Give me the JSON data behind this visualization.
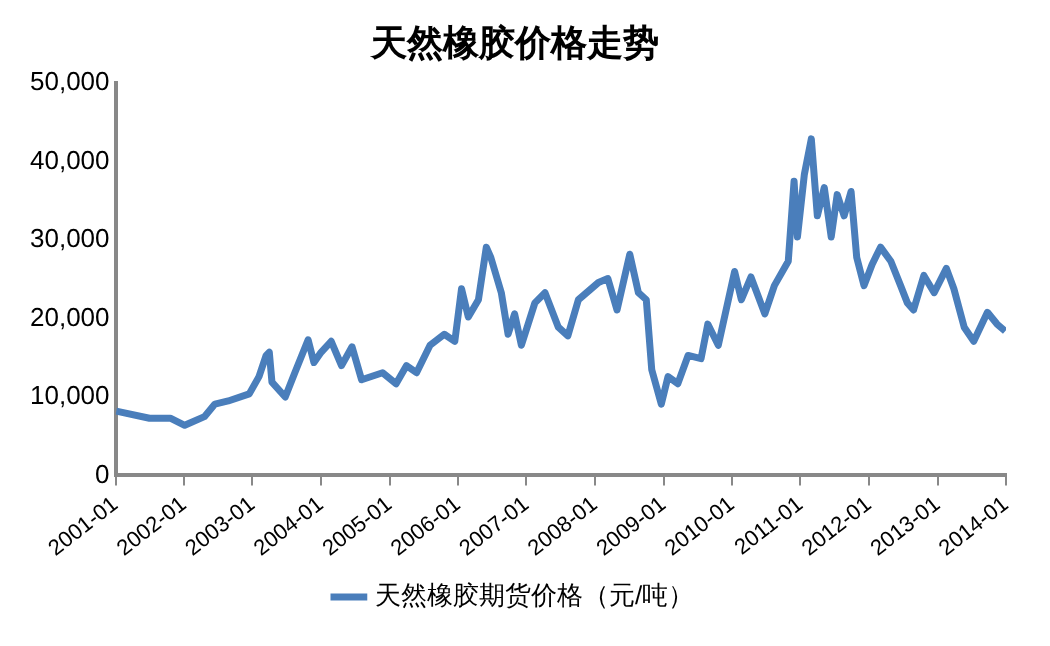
{
  "chart_data": {
    "type": "line",
    "title": "天然橡胶价格走势",
    "legend": "bottom",
    "xlim": [
      "2001-01",
      "2014-01"
    ],
    "xticks": [
      "2001-01",
      "2002-01",
      "2003-01",
      "2004-01",
      "2005-01",
      "2006-01",
      "2007-01",
      "2008-01",
      "2009-01",
      "2010-01",
      "2011-01",
      "2012-01",
      "2013-01",
      "2014-01"
    ],
    "ylim": [
      0,
      50000
    ],
    "yticks": [
      0,
      {
        "value": 10000,
        "label": "10,000"
      },
      {
        "value": 20000,
        "label": "20,000"
      },
      {
        "value": 30000,
        "label": "30,000"
      },
      {
        "value": 40000,
        "label": "40,000"
      },
      {
        "value": 50000,
        "label": "50,000"
      }
    ],
    "x": [
      "2001-01-05",
      "2001-07-01",
      "2001-10-20",
      "2002-01-05",
      "2002-04-20",
      "2002-06-15",
      "2002-08-25",
      "2002-12-15",
      "2003-02-05",
      "2003-03-15",
      "2003-04-01",
      "2003-04-15",
      "2003-06-25",
      "2003-08-15",
      "2003-10-25",
      "2003-11-25",
      "2004-01-02",
      "2004-02-25",
      "2004-04-20",
      "2004-06-15",
      "2004-08-05",
      "2004-11-25",
      "2005-02-05",
      "2005-04-01",
      "2005-05-25",
      "2005-08-05",
      "2005-10-20",
      "2005-12-15",
      "2006-01-20",
      "2006-02-25",
      "2006-04-20",
      "2006-06-01",
      "2006-06-25",
      "2006-08-20",
      "2006-09-25",
      "2006-10-30",
      "2006-12-05",
      "2007-02-15",
      "2007-04-10",
      "2007-06-20",
      "2007-08-10",
      "2007-10-05",
      "2008-01-20",
      "2008-03-10",
      "2008-04-28",
      "2008-07-05",
      "2008-08-20",
      "2008-10-01",
      "2008-10-30",
      "2008-12-20",
      "2009-01-25",
      "2009-03-18",
      "2009-05-12",
      "2009-07-20",
      "2009-08-25",
      "2009-10-20",
      "2010-01-15",
      "2010-02-20",
      "2010-04-12",
      "2010-06-25",
      "2010-08-15",
      "2010-10-28",
      "2010-11-28",
      "2010-12-16",
      "2011-01-22",
      "2011-02-28",
      "2011-04-01",
      "2011-05-08",
      "2011-06-14",
      "2011-07-16",
      "2011-08-22",
      "2011-09-28",
      "2011-10-28",
      "2011-12-06",
      "2012-01-18",
      "2012-03-03",
      "2012-04-27",
      "2012-06-18",
      "2012-07-24",
      "2012-08-26",
      "2012-10-20",
      "2012-12-14",
      "2013-02-17",
      "2013-03-29",
      "2013-05-23",
      "2013-07-13",
      "2013-09-24",
      "2013-11-14",
      "2013-12-28"
    ],
    "series": [
      {
        "name": "天然橡胶期货价格（元/吨）",
        "color": "#4a7ebb",
        "values": [
          8200,
          7300,
          7300,
          6400,
          7500,
          9100,
          9500,
          10400,
          12600,
          15300,
          15700,
          11900,
          10000,
          13100,
          17300,
          14400,
          15700,
          17100,
          14000,
          16400,
          12200,
          13100,
          11700,
          14000,
          13100,
          16600,
          18000,
          17100,
          23800,
          20200,
          22400,
          29100,
          27800,
          23300,
          18000,
          20600,
          16600,
          22000,
          23300,
          18900,
          17800,
          22400,
          24600,
          25100,
          21100,
          28200,
          23300,
          22400,
          13500,
          9100,
          12600,
          11700,
          15300,
          14900,
          19300,
          16600,
          26000,
          22400,
          25300,
          20600,
          24200,
          27300,
          37500,
          30400,
          38400,
          42900,
          33100,
          36700,
          30400,
          35800,
          33100,
          36200,
          27800,
          24200,
          26900,
          29100,
          27300,
          24200,
          22000,
          21100,
          25500,
          23300,
          26400,
          23800,
          18900,
          17100,
          20800,
          19300,
          18400
        ]
      }
    ]
  }
}
